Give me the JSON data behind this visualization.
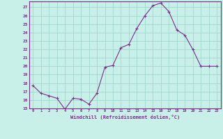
{
  "x": [
    0,
    1,
    2,
    3,
    4,
    5,
    6,
    7,
    8,
    9,
    10,
    11,
    12,
    13,
    14,
    15,
    16,
    17,
    18,
    19,
    20,
    21,
    22,
    23
  ],
  "y": [
    17.7,
    16.8,
    16.5,
    16.2,
    14.9,
    16.2,
    16.1,
    15.5,
    16.8,
    19.9,
    20.1,
    22.2,
    22.6,
    24.5,
    26.0,
    27.2,
    27.5,
    26.5,
    24.3,
    23.7,
    22.0,
    20.0,
    20.0,
    20.0
  ],
  "line_color": "#7b2d8b",
  "marker_color": "#7b2d8b",
  "bg_color": "#c8f0e8",
  "grid_color": "#a0d8d0",
  "xlabel": "Windchill (Refroidissement éolien,°C)",
  "ylim": [
    15,
    27.7
  ],
  "ytick_min": 15,
  "ytick_max": 27,
  "xticks": [
    0,
    1,
    2,
    3,
    4,
    5,
    6,
    7,
    8,
    9,
    10,
    11,
    12,
    13,
    14,
    15,
    16,
    17,
    18,
    19,
    20,
    21,
    22,
    23
  ],
  "tick_color": "#7b2d8b",
  "label_color": "#7b2d8b",
  "spine_color": "#7b2d8b"
}
